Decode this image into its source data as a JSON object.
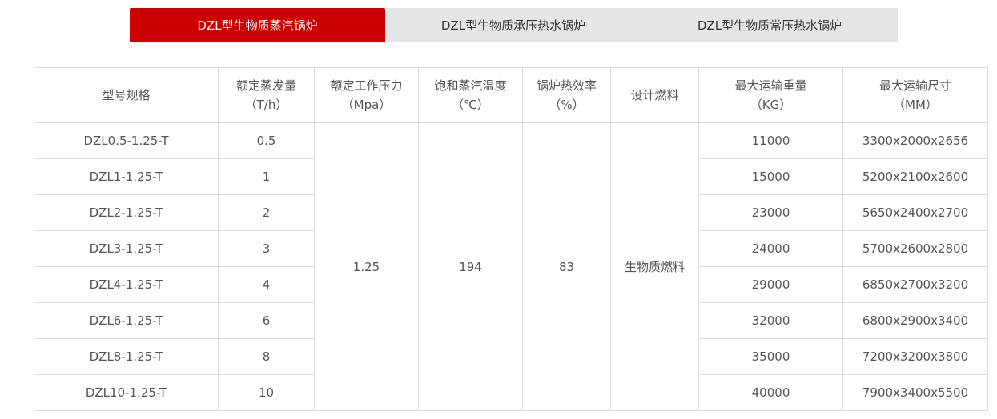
{
  "tabs": [
    {
      "label": "DZL型生物质蒸汽锅炉",
      "active": true
    },
    {
      "label": "DZL型生物质承压热水锅炉"
    },
    {
      "label": "DZL型生物质常压热水锅炉"
    }
  ],
  "accent_color": "#cc0000",
  "table": {
    "headers": [
      [
        "型号规格",
        ""
      ],
      [
        "额定蒸发量",
        "（T/h）"
      ],
      [
        "额定工作压力",
        "（Mpa）"
      ],
      [
        "饱和蒸汽温度",
        "（℃）"
      ],
      [
        "锅炉热效率",
        "（%）"
      ],
      [
        "设计燃料",
        ""
      ],
      [
        "最大运输重量",
        "（KG）"
      ],
      [
        "最大运输尺寸",
        "（MM）"
      ]
    ],
    "shared": {
      "pressure": "1.25",
      "temperature": "194",
      "efficiency": "83",
      "fuel": "生物质燃料"
    },
    "rows": [
      [
        "DZL0.5-1.25-T",
        "0.5",
        "11000",
        "3300x2000x2656"
      ],
      [
        "DZL1-1.25-T",
        "1",
        "15000",
        "5200x2100x2600"
      ],
      [
        "DZL2-1.25-T",
        "2",
        "23000",
        "5650x2400x2700"
      ],
      [
        "DZL3-1.25-T",
        "3",
        "24000",
        "5700x2600x2800"
      ],
      [
        "DZL4-1.25-T",
        "4",
        "29000",
        "6850x2700x3200"
      ],
      [
        "DZL6-1.25-T",
        "6",
        "32000",
        "6800x2900x3400"
      ],
      [
        "DZL8-1.25-T",
        "8",
        "35000",
        "7200x3200x3800"
      ],
      [
        "DZL10-1.25-T",
        "10",
        "40000",
        "7900x3400x5500"
      ]
    ]
  }
}
